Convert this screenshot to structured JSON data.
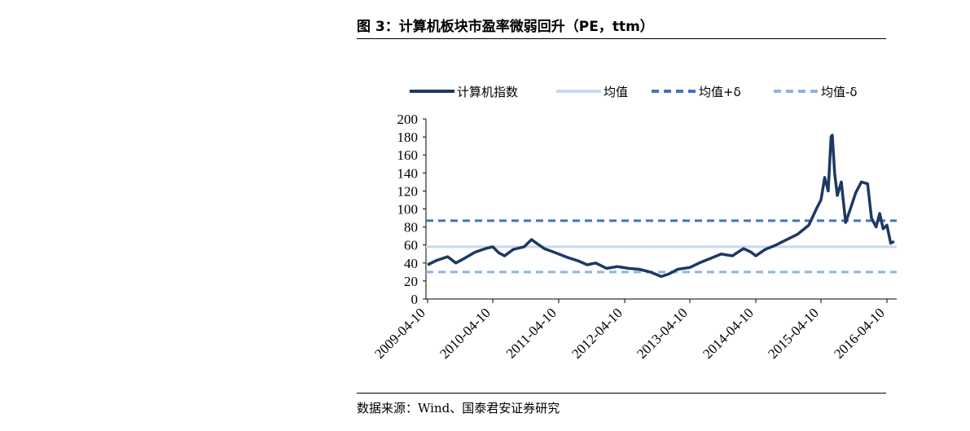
{
  "title": "图 3：计算机板块市盈率微弱回升（PE，ttm）",
  "source": "数据来源：Wind、国泰君安证券研究",
  "colors": {
    "series": "#1f3864",
    "mean": "#c5d9f1",
    "upper": "#4472c4",
    "lower": "#8eb4e3"
  },
  "chart_data": {
    "type": "line",
    "title": "",
    "xlabel": "",
    "ylabel": "",
    "ylim": [
      0,
      200
    ],
    "yticks": [
      "0",
      "20",
      "40",
      "60",
      "80",
      "100",
      "120",
      "140",
      "160",
      "180",
      "200"
    ],
    "x_tick_labels": [
      "2009-04-10",
      "2010-04-10",
      "2011-04-10",
      "2012-04-10",
      "2013-04-10",
      "2014-04-10",
      "2015-04-10",
      "2016-04-10"
    ],
    "legend_position": "top",
    "grid": false,
    "series": [
      {
        "name": "计算机指数",
        "style": "solid-thick",
        "points": [
          [
            "2009-04-10",
            38
          ],
          [
            "2009-06-01",
            43
          ],
          [
            "2009-08-01",
            47
          ],
          [
            "2009-09-15",
            40
          ],
          [
            "2009-11-01",
            45
          ],
          [
            "2010-01-01",
            52
          ],
          [
            "2010-03-01",
            56
          ],
          [
            "2010-04-10",
            58
          ],
          [
            "2010-05-15",
            51
          ],
          [
            "2010-06-15",
            48
          ],
          [
            "2010-08-01",
            55
          ],
          [
            "2010-10-01",
            58
          ],
          [
            "2010-11-10",
            66
          ],
          [
            "2010-12-15",
            61
          ],
          [
            "2011-01-20",
            56
          ],
          [
            "2011-03-01",
            53
          ],
          [
            "2011-04-10",
            50
          ],
          [
            "2011-06-01",
            46
          ],
          [
            "2011-08-01",
            42
          ],
          [
            "2011-09-15",
            38
          ],
          [
            "2011-11-01",
            40
          ],
          [
            "2012-01-01",
            34
          ],
          [
            "2012-03-01",
            36
          ],
          [
            "2012-05-01",
            34
          ],
          [
            "2012-07-01",
            33
          ],
          [
            "2012-09-01",
            30
          ],
          [
            "2012-11-01",
            25
          ],
          [
            "2012-12-15",
            28
          ],
          [
            "2013-02-01",
            33
          ],
          [
            "2013-04-10",
            35
          ],
          [
            "2013-06-01",
            40
          ],
          [
            "2013-08-01",
            45
          ],
          [
            "2013-10-01",
            50
          ],
          [
            "2013-12-01",
            48
          ],
          [
            "2014-02-01",
            56
          ],
          [
            "2014-03-15",
            52
          ],
          [
            "2014-04-10",
            48
          ],
          [
            "2014-06-01",
            55
          ],
          [
            "2014-08-01",
            60
          ],
          [
            "2014-10-01",
            66
          ],
          [
            "2014-12-01",
            72
          ],
          [
            "2015-02-01",
            82
          ],
          [
            "2015-03-15",
            100
          ],
          [
            "2015-04-10",
            110
          ],
          [
            "2015-05-01",
            135
          ],
          [
            "2015-05-20",
            120
          ],
          [
            "2015-06-05",
            180
          ],
          [
            "2015-06-12",
            182
          ],
          [
            "2015-06-25",
            140
          ],
          [
            "2015-07-10",
            115
          ],
          [
            "2015-08-01",
            130
          ],
          [
            "2015-08-25",
            85
          ],
          [
            "2015-09-20",
            100
          ],
          [
            "2015-10-20",
            118
          ],
          [
            "2015-11-20",
            130
          ],
          [
            "2015-12-25",
            128
          ],
          [
            "2016-01-15",
            90
          ],
          [
            "2016-02-10",
            80
          ],
          [
            "2016-03-01",
            95
          ],
          [
            "2016-03-20",
            78
          ],
          [
            "2016-04-10",
            82
          ],
          [
            "2016-05-01",
            62
          ],
          [
            "2016-05-20",
            64
          ]
        ]
      },
      {
        "name": "均值",
        "style": "solid-thin",
        "value": 58
      },
      {
        "name": "均值+δ",
        "style": "dashed",
        "value": 87
      },
      {
        "name": "均值-δ",
        "style": "dashed",
        "value": 30
      }
    ]
  }
}
